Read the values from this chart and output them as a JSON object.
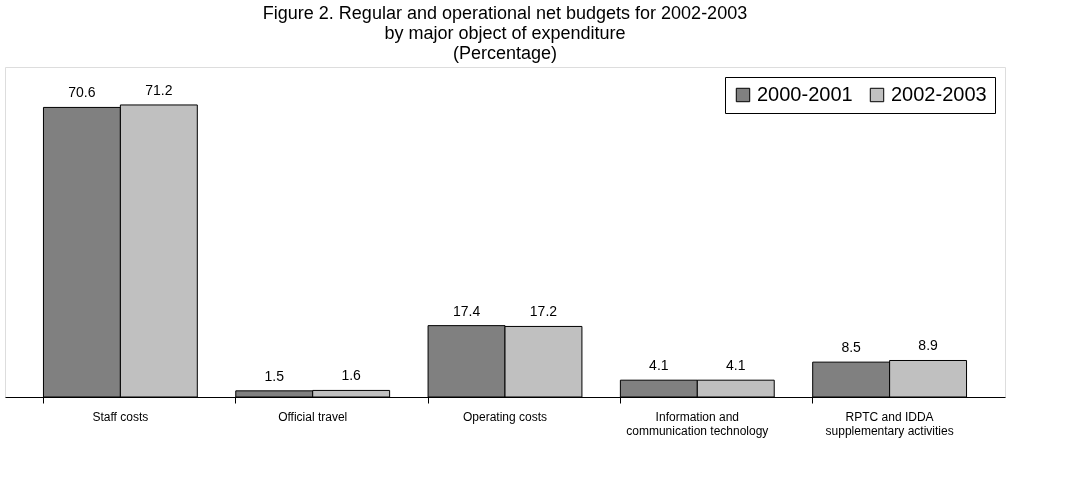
{
  "chart_data": {
    "type": "bar",
    "title": "Figure 2.  Regular and operational net budgets for 2002-2003\nby major object of expenditure\n(Percentage)",
    "categories": [
      "Staff costs",
      "Official travel",
      "Operating costs",
      "Information and\ncommunication technology",
      "RPTC and IDDA\nsupplementary activities"
    ],
    "series": [
      {
        "name": "2000-2001",
        "color": "#808080",
        "values": [
          70.6,
          1.5,
          17.4,
          4.1,
          8.5
        ]
      },
      {
        "name": "2002-2003",
        "color": "#c0c0c0",
        "values": [
          71.2,
          1.6,
          17.2,
          4.1,
          8.9
        ]
      }
    ],
    "data_labels": true,
    "legend": "top right",
    "grid": false
  }
}
